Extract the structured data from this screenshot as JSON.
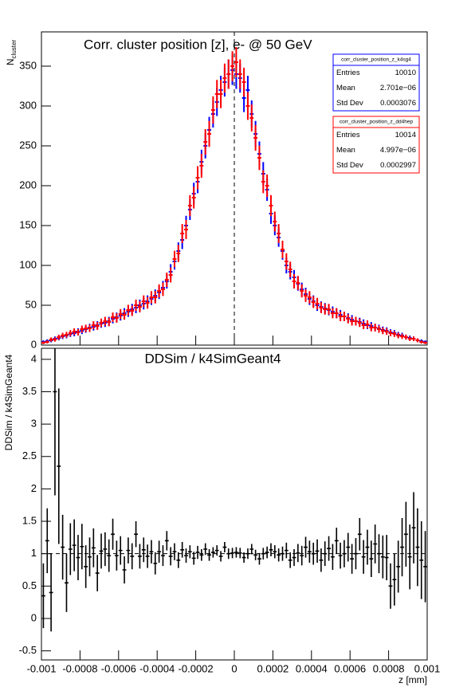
{
  "chart_data": [
    {
      "type": "histogram",
      "title": "Corr. cluster position [z],  e- @ 50 GeV",
      "ylabel": "N",
      "ylabel_sub": "cluster",
      "bins": [
        -0.001,
        -0.00098,
        -0.00096,
        -0.00094,
        -0.00092,
        -0.0009,
        -0.00088,
        -0.00086,
        -0.00084,
        -0.00082,
        -0.0008,
        -0.00078,
        -0.00076,
        -0.00074,
        -0.00072,
        -0.0007,
        -0.00068,
        -0.00066,
        -0.00064,
        -0.00062,
        -0.0006,
        -0.00058,
        -0.00056,
        -0.00054,
        -0.00052,
        -0.0005,
        -0.00048,
        -0.00046,
        -0.00044,
        -0.00042,
        -0.0004,
        -0.00038,
        -0.00036,
        -0.00034,
        -0.00032,
        -0.0003,
        -0.00028,
        -0.00026,
        -0.00024,
        -0.00022,
        -0.0002,
        -0.00018,
        -0.00016,
        -0.00014,
        -0.00012,
        -0.0001,
        -8e-05,
        -6e-05,
        -4e-05,
        -2e-05,
        0,
        2e-05,
        4e-05,
        6e-05,
        8e-05,
        0.0001,
        0.00012,
        0.00014,
        0.00016,
        0.00018,
        0.0002,
        0.00022,
        0.00024,
        0.00026,
        0.00028,
        0.0003,
        0.00032,
        0.00034,
        0.00036,
        0.00038,
        0.0004,
        0.00042,
        0.00044,
        0.00046,
        0.00048,
        0.0005,
        0.00052,
        0.00054,
        0.00056,
        0.00058,
        0.0006,
        0.00062,
        0.00064,
        0.00066,
        0.00068,
        0.0007,
        0.00072,
        0.00074,
        0.00076,
        0.00078,
        0.0008,
        0.00082,
        0.00084,
        0.00086,
        0.00088,
        0.0009,
        0.00092,
        0.00094,
        0.00096,
        0.00098,
        0.001
      ],
      "xlim": [
        -0.001,
        0.001
      ],
      "ylim": [
        0,
        393
      ],
      "yticks": [
        0,
        50,
        100,
        150,
        200,
        250,
        300,
        350
      ],
      "series": [
        {
          "name": "corr_cluster_position_z_k4sg4",
          "color": "#0000ff",
          "stats": [
            [
              "Entries",
              "10010"
            ],
            [
              "Mean",
              "2.701e−06"
            ],
            [
              "Std Dev",
              "0.0003076"
            ]
          ],
          "values": [
            4,
            5,
            6,
            8,
            9,
            11,
            12,
            14,
            15,
            17,
            18,
            20,
            22,
            23,
            25,
            27,
            28,
            30,
            33,
            35,
            37,
            40,
            42,
            45,
            47,
            50,
            52,
            55,
            58,
            62,
            66,
            72,
            80,
            92,
            105,
            118,
            132,
            150,
            170,
            190,
            205,
            230,
            250,
            270,
            290,
            305,
            320,
            330,
            340,
            345,
            340,
            335,
            310,
            320,
            290,
            265,
            240,
            215,
            195,
            165,
            150,
            135,
            118,
            100,
            92,
            85,
            77,
            70,
            64,
            58,
            55,
            50,
            48,
            46,
            44,
            42,
            40,
            38,
            36,
            34,
            32,
            30,
            29,
            27,
            25,
            24,
            22,
            21,
            19,
            18,
            16,
            15,
            13,
            12,
            10,
            9,
            8,
            6,
            5,
            4
          ]
        },
        {
          "name": "corr_cluster_position_z_dd4hep",
          "color": "#ff0000",
          "stats": [
            [
              "Entries",
              "10014"
            ],
            [
              "Mean",
              "4.997e−06"
            ],
            [
              "Std Dev",
              "0.0002997"
            ]
          ],
          "values": [
            3,
            4,
            7,
            7,
            10,
            12,
            13,
            15,
            17,
            16,
            20,
            21,
            21,
            25,
            24,
            28,
            30,
            29,
            35,
            34,
            39,
            38,
            44,
            43,
            50,
            48,
            55,
            53,
            60,
            60,
            68,
            70,
            82,
            88,
            108,
            115,
            140,
            145,
            175,
            185,
            210,
            225,
            255,
            265,
            295,
            315,
            315,
            335,
            340,
            350,
            355,
            340,
            330,
            300,
            285,
            260,
            235,
            205,
            200,
            175,
            155,
            140,
            120,
            105,
            95,
            80,
            78,
            68,
            62,
            60,
            54,
            52,
            47,
            45,
            45,
            40,
            40,
            36,
            36,
            33,
            30,
            30,
            28,
            25,
            26,
            22,
            22,
            20,
            18,
            17,
            15,
            14,
            12,
            11,
            10,
            8,
            8,
            6,
            4,
            3
          ]
        }
      ]
    },
    {
      "type": "ratio",
      "title": "DDSim / k4SimGeant4",
      "ylabel": "DDSim / k4SimGeant4",
      "xlabel": "z [mm]",
      "xlim": [
        -0.001,
        0.001
      ],
      "xticks": [
        -0.001,
        -0.0008,
        -0.0006,
        -0.0004,
        -0.0002,
        0,
        0.0002,
        0.0004,
        0.0006,
        0.0008,
        0.001
      ],
      "ylim": [
        -0.64,
        4.17
      ],
      "yticks": [
        -0.5,
        0,
        0.5,
        1,
        1.5,
        2,
        2.5,
        3,
        3.5,
        4
      ],
      "color": "#000000",
      "values": [
        0.35,
        1.2,
        0.4,
        3.5,
        2.35,
        1.1,
        0.55,
        1.07,
        1.13,
        0.94,
        1.11,
        0.8,
        0.95,
        1.09,
        0.7,
        1.04,
        1.07,
        0.97,
        1.3,
        0.97,
        1.05,
        0.75,
        1.05,
        0.96,
        1.3,
        0.96,
        1.06,
        0.96,
        1.03,
        0.85,
        1.03,
        0.97,
        1.2,
        0.96,
        1.03,
        0.9,
        1.06,
        0.97,
        1.03,
        0.93,
        1.02,
        0.98,
        1.07,
        0.98,
        1.02,
        1.05,
        0.96,
        1.1,
        1.0,
        1.01,
        1.02,
        1.01,
        0.94,
        1.0,
        1.07,
        0.98,
        0.92,
        1.0,
        1.02,
        1.06,
        1.03,
        0.98,
        1.0,
        1.05,
        0.9,
        0.94,
        1.01,
        0.97,
        1.1,
        1.03,
        1.0,
        1.04,
        0.9,
        1.0,
        1.08,
        0.95,
        1.2,
        0.97,
        1.0,
        1.1,
        0.92,
        1.0,
        1.3,
        0.95,
        1.1,
        0.92,
        1.15,
        1.0,
        0.95,
        0.94,
        0.5,
        0.6,
        0.8,
        1.1,
        1.3,
        0.95,
        1.4,
        1.1,
        0.9,
        0.8
      ],
      "errors": [
        0.5,
        0.5,
        0.6,
        1.6,
        1.2,
        0.5,
        0.45,
        0.4,
        0.4,
        0.35,
        0.35,
        0.33,
        0.3,
        0.3,
        0.28,
        0.27,
        0.26,
        0.25,
        0.24,
        0.23,
        0.22,
        0.21,
        0.2,
        0.2,
        0.2,
        0.19,
        0.19,
        0.18,
        0.18,
        0.17,
        0.17,
        0.16,
        0.15,
        0.14,
        0.13,
        0.12,
        0.12,
        0.11,
        0.1,
        0.1,
        0.1,
        0.09,
        0.09,
        0.09,
        0.08,
        0.08,
        0.08,
        0.08,
        0.08,
        0.08,
        0.08,
        0.08,
        0.08,
        0.08,
        0.08,
        0.08,
        0.09,
        0.09,
        0.09,
        0.1,
        0.1,
        0.1,
        0.11,
        0.12,
        0.12,
        0.13,
        0.14,
        0.15,
        0.16,
        0.17,
        0.17,
        0.18,
        0.18,
        0.19,
        0.19,
        0.2,
        0.2,
        0.2,
        0.21,
        0.22,
        0.23,
        0.24,
        0.25,
        0.26,
        0.27,
        0.28,
        0.3,
        0.3,
        0.33,
        0.35,
        0.35,
        0.4,
        0.4,
        0.45,
        0.5,
        0.5,
        0.55,
        0.6,
        0.6,
        0.55
      ]
    }
  ]
}
